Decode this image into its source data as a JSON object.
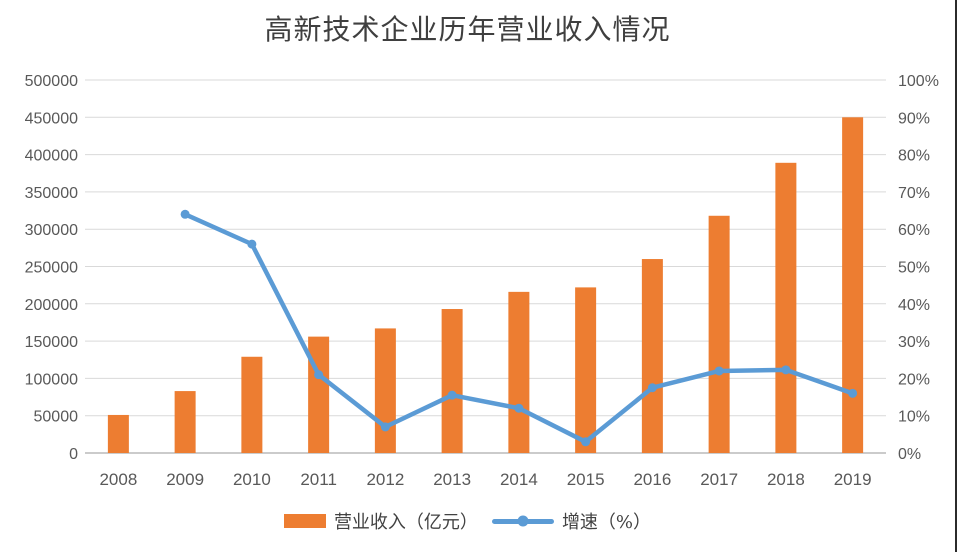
{
  "page": {
    "background": "#FFFFFF",
    "right_edge_line_color": "#2B2B2B"
  },
  "header": {
    "title": "高新技术企业历年营业收入情况"
  },
  "legend": {
    "items": [
      {
        "label": "营业收入（亿元）",
        "swatch": "bar",
        "color": "#ED7D31"
      },
      {
        "label": "增速（%）",
        "swatch": "line",
        "color": "#5B9BD5"
      }
    ]
  },
  "chart_data": {
    "type": "combo",
    "title": "高新技术企业历年营业收入情况",
    "categories": [
      "2008",
      "2009",
      "2010",
      "2011",
      "2012",
      "2013",
      "2014",
      "2015",
      "2016",
      "2017",
      "2018",
      "2019"
    ],
    "series": [
      {
        "name": "营业收入（亿元）",
        "type": "bar",
        "axis": "left",
        "color": "#ED7D31",
        "values": [
          51000,
          83000,
          129000,
          156000,
          167000,
          193000,
          216000,
          222000,
          260000,
          318000,
          389000,
          450000
        ]
      },
      {
        "name": "增速（%）",
        "type": "line",
        "axis": "right",
        "color": "#5B9BD5",
        "values": [
          null,
          64,
          56,
          21,
          7,
          15.5,
          12,
          3,
          17.5,
          22,
          22.3,
          16
        ]
      }
    ],
    "left_axis": {
      "min": 0,
      "max": 500000,
      "step": 50000,
      "tick_labels": [
        "0",
        "50000",
        "100000",
        "150000",
        "200000",
        "250000",
        "300000",
        "350000",
        "400000",
        "450000",
        "500000"
      ]
    },
    "right_axis": {
      "min": 0,
      "max": 100,
      "step": 10,
      "tick_labels": [
        "0%",
        "10%",
        "20%",
        "30%",
        "40%",
        "50%",
        "60%",
        "70%",
        "80%",
        "90%",
        "100%"
      ]
    },
    "grid": true,
    "gridline_color": "#D9D9D9",
    "axis_line_color": "#CBCBCB",
    "tick_label_color": "#595959",
    "legend_position": "bottom"
  }
}
